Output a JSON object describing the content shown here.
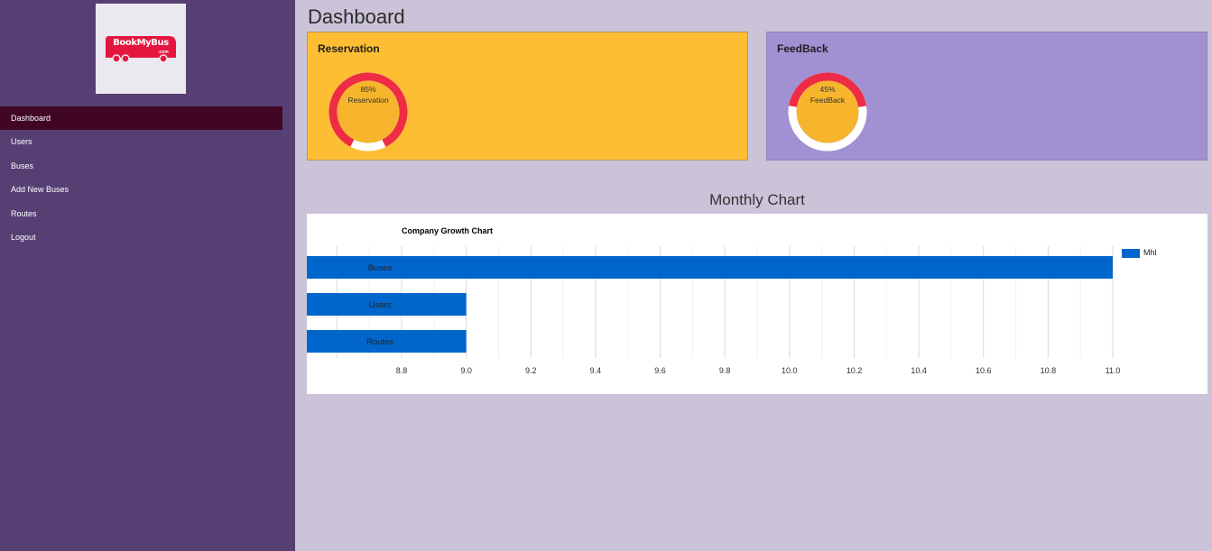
{
  "sidebar": {
    "logo_text": "BookMyBus",
    "logo_suffix": ".com",
    "items": [
      {
        "label": "Dashboard"
      },
      {
        "label": "Users"
      },
      {
        "label": "Buses"
      },
      {
        "label": "Add New Buses"
      },
      {
        "label": "Routes"
      },
      {
        "label": "Logout"
      }
    ]
  },
  "page_title": "Dashboard",
  "cards": {
    "reservation": {
      "title": "Reservation",
      "percent_label": "85%",
      "caption": "Reservation",
      "value": 85
    },
    "feedback": {
      "title": "FeedBack",
      "percent_label": "45%",
      "caption": "FeedBack",
      "value": 45
    }
  },
  "section_title": "Monthly Chart",
  "chart_data": {
    "type": "bar",
    "orientation": "horizontal",
    "title": "Company Growth Chart",
    "categories": [
      "Buses",
      "Users",
      "Routes"
    ],
    "series": [
      {
        "name": "Mhl",
        "values": [
          11,
          9,
          9
        ],
        "color": "#0066cc"
      }
    ],
    "xlim": [
      8.6,
      11.3
    ],
    "xticks": [
      "8.8",
      "9.0",
      "9.2",
      "9.4",
      "9.6",
      "9.8",
      "10.0",
      "10.2",
      "10.4",
      "10.6",
      "10.8",
      "11.0"
    ],
    "grid": true,
    "legend": "top-right"
  },
  "colors": {
    "sidebar": "#563f73",
    "active_nav": "#410626",
    "reservation_card": "#fdbe33",
    "feedback_card": "#a291d2",
    "donut_ring": "#ef2c45",
    "bar": "#0066cc"
  }
}
